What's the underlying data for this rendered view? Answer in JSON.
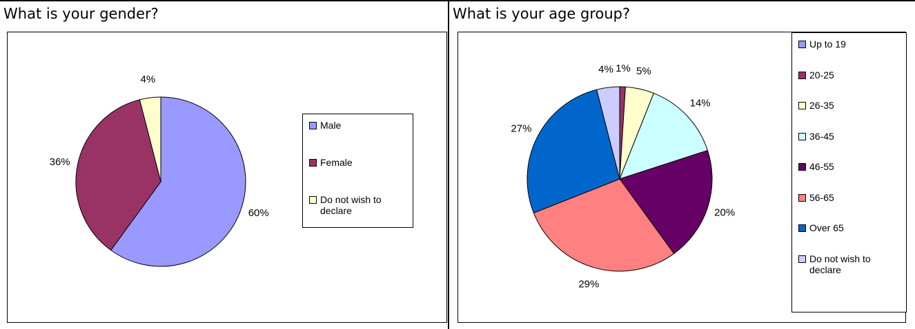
{
  "chart_data": [
    {
      "type": "pie",
      "title": "What is your gender?",
      "categories": [
        "Male",
        "Female",
        "Do not wish to declare"
      ],
      "values": [
        60,
        36,
        4
      ],
      "colors": [
        "#9999ff",
        "#993366",
        "#ffffcc"
      ]
    },
    {
      "type": "pie",
      "title": "What is your age group?",
      "categories": [
        "Up to 19",
        "20-25",
        "26-35",
        "36-45",
        "46-55",
        "56-65",
        "Over 65",
        "Do not wish to declare"
      ],
      "values": [
        0,
        1,
        5,
        14,
        20,
        29,
        27,
        4
      ],
      "colors": [
        "#9999ff",
        "#993366",
        "#ffffcc",
        "#ccffff",
        "#660066",
        "#ff8080",
        "#0066cc",
        "#ccccff"
      ]
    }
  ]
}
